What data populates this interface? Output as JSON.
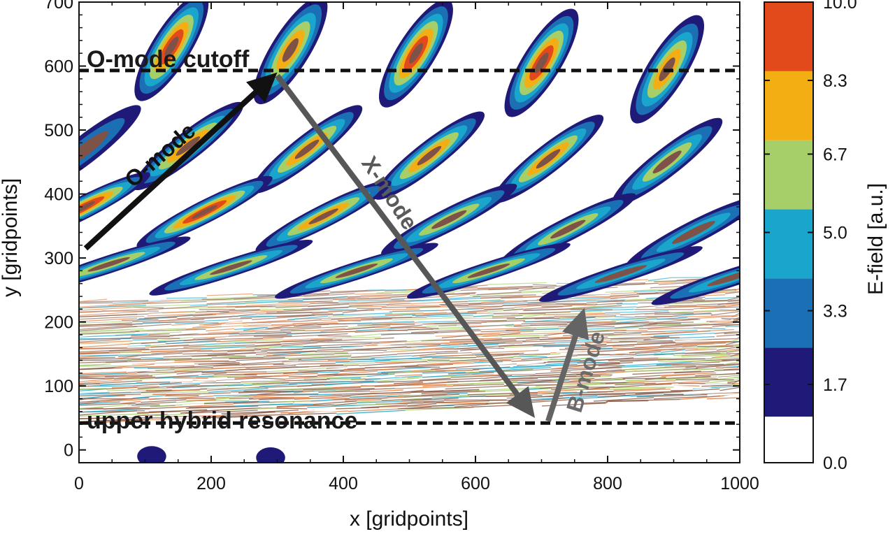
{
  "chart_data": {
    "type": "heatmap",
    "title": "",
    "xlabel": "x [gridpoints]",
    "ylabel": "y [gridpoints]",
    "xlim": [
      0,
      1000
    ],
    "ylim": [
      -20,
      700
    ],
    "x_ticks": [
      0,
      200,
      400,
      600,
      800,
      1000
    ],
    "y_ticks": [
      0,
      100,
      200,
      300,
      400,
      500,
      600,
      700
    ],
    "colorbar": {
      "label": "E-field [a.u.]",
      "ticks": [
        "0.0",
        "1.7",
        "3.3",
        "5.0",
        "6.7",
        "8.3",
        "10.0"
      ],
      "levels": [
        0.0,
        1.0,
        2.5,
        4.0,
        5.5,
        7.0,
        8.5,
        10.0
      ],
      "colors": [
        "#ffffff",
        "#1f1a78",
        "#1b6fb5",
        "#1aa6cc",
        "#a6cf6a",
        "#f2ae12",
        "#e24a1c",
        "#7e5246"
      ]
    },
    "reference_lines": [
      {
        "label": "O-mode cutoff",
        "y": 593
      },
      {
        "label": "upper hybrid resonance",
        "y": 42
      }
    ],
    "annotations": [
      {
        "label": "O-mode",
        "color": "#111111",
        "from": [
          10,
          315
        ],
        "to": [
          300,
          590
        ]
      },
      {
        "label": "X-mode",
        "color": "#575757",
        "from": [
          300,
          585
        ],
        "to": [
          690,
          50
        ]
      },
      {
        "label": "B-mode",
        "color": "#646464",
        "from": [
          710,
          45
        ],
        "to": [
          765,
          222
        ]
      }
    ],
    "field_pattern": {
      "upper_lobes": [
        {
          "x": 140,
          "y": 630,
          "peak": 9.2
        },
        {
          "x": 320,
          "y": 625,
          "peak": 8.4
        },
        {
          "x": 510,
          "y": 620,
          "peak": 9.5
        },
        {
          "x": 700,
          "y": 605,
          "peak": 8.8
        },
        {
          "x": 890,
          "y": 595,
          "peak": 7.2
        },
        {
          "x": 10,
          "y": 470,
          "peak": 3.5
        },
        {
          "x": 165,
          "y": 475,
          "peak": 8.0
        },
        {
          "x": 345,
          "y": 470,
          "peak": 8.4
        },
        {
          "x": 530,
          "y": 460,
          "peak": 8.4
        },
        {
          "x": 710,
          "y": 455,
          "peak": 7.0
        },
        {
          "x": 890,
          "y": 450,
          "peak": 6.0
        },
        {
          "x": 5,
          "y": 378,
          "peak": 8.6
        },
        {
          "x": 190,
          "y": 372,
          "peak": 8.5
        },
        {
          "x": 370,
          "y": 365,
          "peak": 7.2
        },
        {
          "x": 560,
          "y": 360,
          "peak": 6.2
        },
        {
          "x": 740,
          "y": 345,
          "peak": 5.6
        },
        {
          "x": 930,
          "y": 340,
          "peak": 5.2
        },
        {
          "x": 45,
          "y": 290,
          "peak": 6.5
        },
        {
          "x": 230,
          "y": 285,
          "peak": 5.8
        },
        {
          "x": 420,
          "y": 280,
          "peak": 5.6
        },
        {
          "x": 620,
          "y": 280,
          "peak": 5.8
        },
        {
          "x": 820,
          "y": 275,
          "peak": 5.0
        },
        {
          "x": 990,
          "y": 270,
          "peak": 4.8
        }
      ],
      "lower_blobs": [
        {
          "x": 110,
          "y": -10,
          "peak": 1.4
        },
        {
          "x": 290,
          "y": -12,
          "peak": 1.2
        }
      ],
      "turbulent_band_y": [
        60,
        250
      ]
    }
  }
}
